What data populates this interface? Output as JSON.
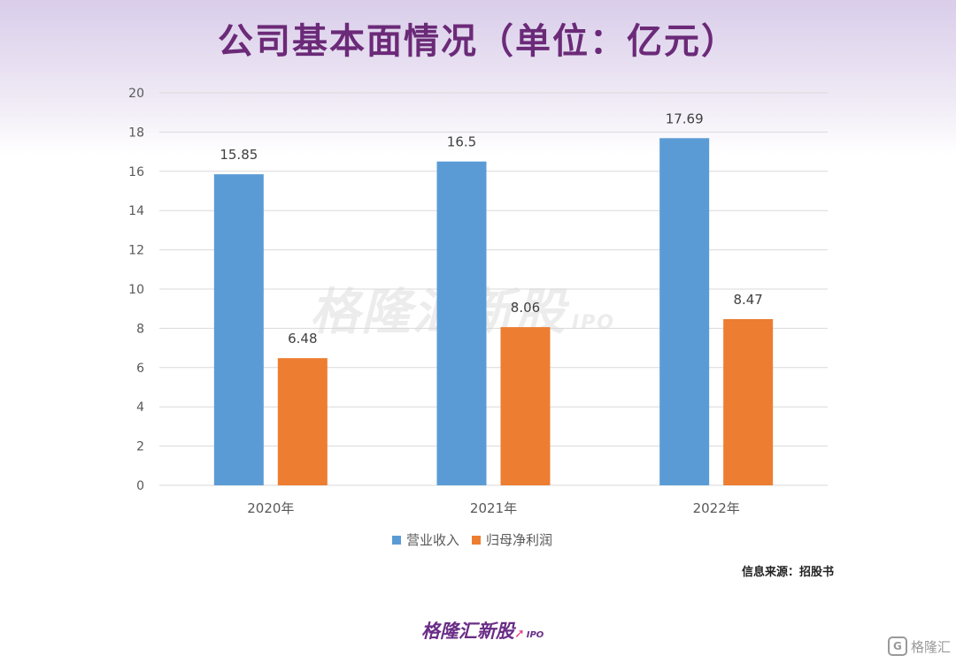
{
  "title": "公司基本面情况（单位：亿元）",
  "source_note": "信息来源：招股书",
  "watermark": {
    "name": "格隆汇新股",
    "tag": "IPO"
  },
  "brand": {
    "name": "格隆汇新股",
    "tag": "IPO",
    "icon": "rising-arrow-icon"
  },
  "corner_logo": {
    "text": "格隆汇",
    "icon": "g-logo-icon"
  },
  "colors": {
    "series1": "#5b9bd5",
    "series2": "#ed7d31",
    "title": "#6b2a78",
    "grid": "#d9d9d9"
  },
  "chart_data": {
    "type": "bar",
    "title": "公司基本面情况（单位：亿元）",
    "categories": [
      "2020年",
      "2021年",
      "2022年"
    ],
    "series": [
      {
        "name": "营业收入",
        "values": [
          15.85,
          16.5,
          17.69
        ]
      },
      {
        "name": "归母净利润",
        "values": [
          6.48,
          8.06,
          8.47
        ]
      }
    ],
    "value_labels": [
      [
        "15.85",
        "16.5",
        "17.69"
      ],
      [
        "6.48",
        "8.06",
        "8.47"
      ]
    ],
    "ylim": [
      0,
      20
    ],
    "yticks": [
      0,
      2,
      4,
      6,
      8,
      10,
      12,
      14,
      16,
      18,
      20
    ],
    "xlabel": "",
    "ylabel": "",
    "grid": true,
    "legend": "bottom-center"
  }
}
